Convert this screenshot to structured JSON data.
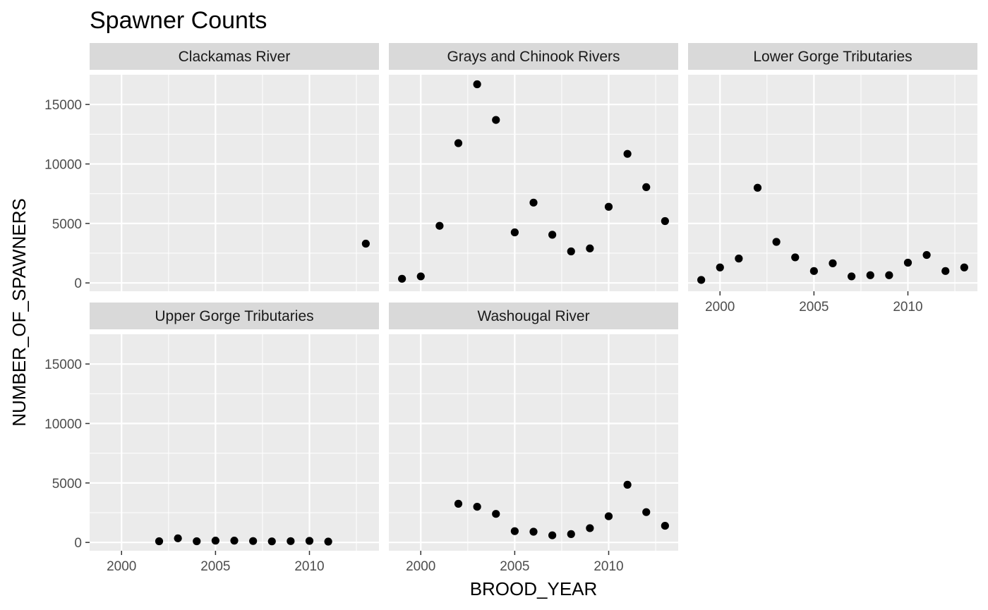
{
  "chart_data": {
    "type": "scatter",
    "title": "Spawner Counts",
    "xlabel": "BROOD_YEAR",
    "ylabel": "NUMBER_OF_SPAWNERS",
    "xlim": [
      1998.3,
      2013.7
    ],
    "ylim": [
      -700,
      17500
    ],
    "x_ticks": [
      2000,
      2005,
      2010
    ],
    "y_ticks": [
      0,
      5000,
      10000,
      15000
    ],
    "grid": true,
    "facets": [
      {
        "name": "Clackamas River",
        "points": [
          [
            2013,
            3300
          ]
        ]
      },
      {
        "name": "Grays and Chinook Rivers",
        "points": [
          [
            1999,
            350
          ],
          [
            2000,
            550
          ],
          [
            2001,
            4800
          ],
          [
            2002,
            11750
          ],
          [
            2003,
            16700
          ],
          [
            2004,
            13700
          ],
          [
            2005,
            4250
          ],
          [
            2006,
            6750
          ],
          [
            2007,
            4050
          ],
          [
            2008,
            2650
          ],
          [
            2009,
            2900
          ],
          [
            2010,
            6400
          ],
          [
            2011,
            10850
          ],
          [
            2012,
            8050
          ],
          [
            2013,
            5200
          ]
        ]
      },
      {
        "name": "Lower Gorge Tributaries",
        "points": [
          [
            1999,
            250
          ],
          [
            2000,
            1300
          ],
          [
            2001,
            2050
          ],
          [
            2002,
            8000
          ],
          [
            2003,
            3450
          ],
          [
            2004,
            2150
          ],
          [
            2005,
            1000
          ],
          [
            2006,
            1650
          ],
          [
            2007,
            550
          ],
          [
            2008,
            650
          ],
          [
            2009,
            650
          ],
          [
            2010,
            1700
          ],
          [
            2011,
            2350
          ],
          [
            2012,
            1000
          ],
          [
            2013,
            1300
          ]
        ]
      },
      {
        "name": "Upper Gorge Tributaries",
        "points": [
          [
            2002,
            100
          ],
          [
            2003,
            350
          ],
          [
            2004,
            100
          ],
          [
            2005,
            150
          ],
          [
            2006,
            150
          ],
          [
            2007,
            120
          ],
          [
            2008,
            90
          ],
          [
            2009,
            110
          ],
          [
            2010,
            130
          ],
          [
            2011,
            70
          ]
        ]
      },
      {
        "name": "Washougal River",
        "points": [
          [
            2002,
            3250
          ],
          [
            2003,
            3000
          ],
          [
            2004,
            2400
          ],
          [
            2005,
            950
          ],
          [
            2006,
            900
          ],
          [
            2007,
            600
          ],
          [
            2008,
            700
          ],
          [
            2009,
            1200
          ],
          [
            2010,
            2200
          ],
          [
            2011,
            4850
          ],
          [
            2012,
            2550
          ],
          [
            2013,
            1400
          ]
        ]
      }
    ]
  }
}
